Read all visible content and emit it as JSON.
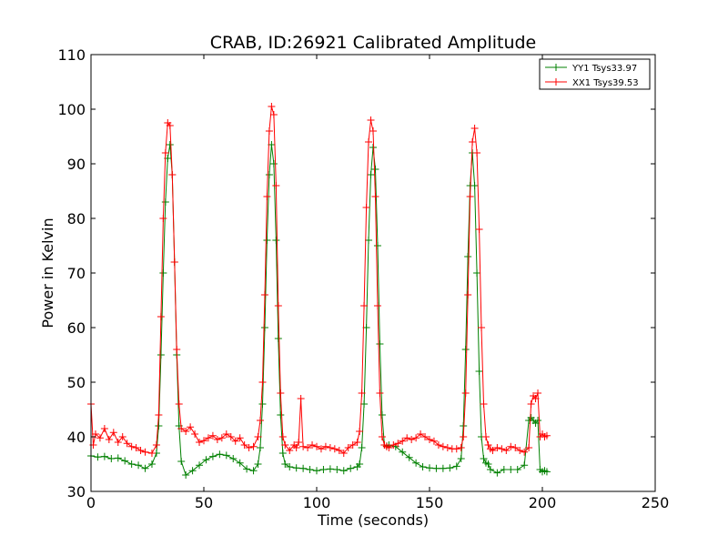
{
  "chart_data": {
    "type": "line",
    "title": "CRAB, ID:26921 Calibrated Amplitude",
    "xlabel": "Time (seconds)",
    "ylabel": "Power in Kelvin",
    "xlim": [
      0,
      250
    ],
    "ylim": [
      30,
      110
    ],
    "xticks": [
      0,
      50,
      100,
      150,
      200,
      250
    ],
    "yticks": [
      30,
      40,
      50,
      60,
      70,
      80,
      90,
      100,
      110
    ],
    "grid": false,
    "legend": "top-right",
    "marker": "+",
    "series": [
      {
        "name": "YY1 Tsys33.97",
        "color": "#008000",
        "x": [
          0,
          3,
          6,
          9,
          12,
          15,
          18,
          21,
          24,
          27,
          29,
          30,
          31,
          32,
          33,
          34,
          35,
          36,
          37,
          38,
          39,
          40,
          42,
          45,
          48,
          51,
          54,
          57,
          60,
          63,
          66,
          69,
          72,
          74,
          75,
          76,
          77,
          78,
          79,
          80,
          81,
          82,
          83,
          84,
          85,
          86,
          88,
          91,
          94,
          97,
          100,
          103,
          106,
          109,
          112,
          115,
          118,
          119,
          120,
          121,
          122,
          123,
          124,
          125,
          126,
          127,
          128,
          129,
          130,
          131,
          132,
          135,
          138,
          141,
          144,
          147,
          150,
          153,
          156,
          159,
          162,
          164,
          165,
          166,
          167,
          168,
          169,
          170,
          171,
          172,
          173,
          174,
          175,
          176,
          177,
          180,
          183,
          186,
          189,
          192,
          194,
          195,
          196,
          197,
          198,
          199,
          200,
          201,
          202
        ],
        "y": [
          36.5,
          36.3,
          36.4,
          36.0,
          36.1,
          35.6,
          35.0,
          34.8,
          34.2,
          35.0,
          37.0,
          42.0,
          55.0,
          70.0,
          83.0,
          91.0,
          93.5,
          88.0,
          72.0,
          55.0,
          42.0,
          35.5,
          33.0,
          33.8,
          34.8,
          35.8,
          36.4,
          36.8,
          36.6,
          36.0,
          35.2,
          34.1,
          33.8,
          35.0,
          38.0,
          46.0,
          60.0,
          76.0,
          88.0,
          93.5,
          90.0,
          76.0,
          58.0,
          44.0,
          37.0,
          35.0,
          34.5,
          34.3,
          34.2,
          34.0,
          33.8,
          34.0,
          34.1,
          34.0,
          33.8,
          34.2,
          34.5,
          35.0,
          38.0,
          46.0,
          60.0,
          76.0,
          88.0,
          93.0,
          89.0,
          75.0,
          57.0,
          44.0,
          38.5,
          38.3,
          38.5,
          38.2,
          37.2,
          36.2,
          35.2,
          34.5,
          34.3,
          34.2,
          34.2,
          34.3,
          34.6,
          36.0,
          42.0,
          56.0,
          73.0,
          86.0,
          92.0,
          86.0,
          70.0,
          52.0,
          40.0,
          36.0,
          35.2,
          35.0,
          34.0,
          33.4,
          34.0,
          34.0,
          34.0,
          34.8,
          43.0,
          43.5,
          43.0,
          42.5,
          43.0,
          34.0,
          33.6,
          33.8,
          33.6
        ]
      },
      {
        "name": "XX1 Tsys39.53",
        "color": "#ff0000",
        "x": [
          0,
          1,
          2,
          4,
          6,
          8,
          10,
          12,
          14,
          16,
          18,
          20,
          22,
          24,
          27,
          29,
          30,
          31,
          32,
          33,
          34,
          35,
          36,
          37,
          38,
          39,
          40,
          42,
          44,
          46,
          48,
          50,
          52,
          54,
          56,
          58,
          60,
          62,
          64,
          66,
          68,
          70,
          72,
          74,
          75,
          76,
          77,
          78,
          79,
          80,
          81,
          82,
          83,
          84,
          85,
          86,
          88,
          90,
          91,
          92,
          93,
          94,
          96,
          98,
          100,
          102,
          104,
          106,
          108,
          110,
          112,
          114,
          116,
          118,
          119,
          120,
          121,
          122,
          123,
          124,
          125,
          126,
          127,
          128,
          129,
          130,
          131,
          132,
          134,
          136,
          138,
          140,
          142,
          144,
          146,
          148,
          150,
          152,
          154,
          156,
          158,
          160,
          162,
          164,
          165,
          166,
          167,
          168,
          169,
          170,
          171,
          172,
          173,
          174,
          175,
          176,
          177,
          178,
          180,
          182,
          184,
          186,
          188,
          190,
          192,
          194,
          195,
          196,
          197,
          198,
          199,
          200,
          201,
          202
        ],
        "y": [
          46.0,
          38.5,
          40.5,
          39.8,
          41.5,
          39.5,
          40.8,
          39.0,
          40.0,
          38.8,
          38.2,
          38.0,
          37.5,
          37.2,
          37.0,
          38.5,
          44.0,
          62.0,
          80.0,
          92.0,
          97.5,
          97.0,
          88.0,
          72.0,
          56.0,
          46.0,
          41.5,
          41.0,
          41.8,
          40.5,
          39.0,
          39.3,
          39.8,
          40.2,
          39.5,
          39.8,
          40.5,
          40.0,
          39.2,
          39.8,
          38.5,
          38.0,
          38.2,
          40.0,
          43.0,
          50.0,
          66.0,
          84.0,
          96.0,
          100.5,
          99.0,
          86.0,
          64.0,
          48.0,
          40.0,
          38.5,
          37.5,
          38.5,
          38.0,
          39.0,
          47.0,
          38.2,
          38.0,
          38.5,
          38.2,
          37.8,
          38.2,
          38.0,
          37.8,
          37.5,
          37.0,
          38.0,
          38.5,
          39.0,
          41.0,
          48.0,
          64.0,
          82.0,
          94.0,
          98.0,
          96.0,
          84.0,
          64.0,
          48.0,
          40.0,
          38.5,
          38.2,
          38.0,
          38.5,
          38.8,
          39.2,
          39.8,
          39.5,
          39.8,
          40.5,
          40.0,
          39.5,
          39.2,
          38.5,
          38.2,
          38.0,
          37.8,
          37.8,
          38.0,
          40.0,
          48.0,
          66.0,
          84.0,
          94.0,
          96.5,
          92.0,
          78.0,
          60.0,
          46.0,
          40.0,
          38.5,
          37.8,
          37.5,
          38.0,
          37.8,
          37.5,
          38.2,
          38.0,
          37.5,
          37.2,
          38.0,
          46.0,
          47.5,
          47.0,
          48.0,
          40.0,
          40.5,
          40.0,
          40.2
        ]
      }
    ]
  }
}
